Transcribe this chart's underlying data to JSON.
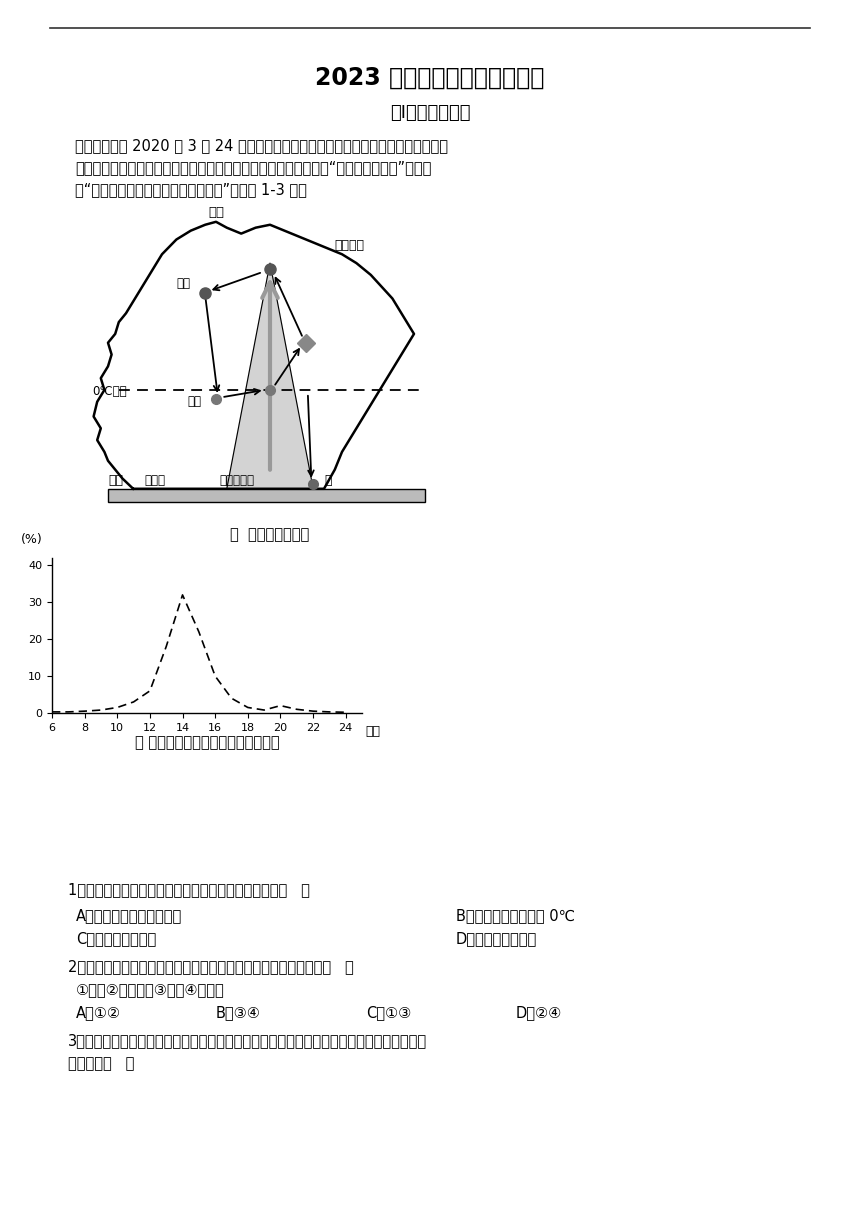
{
  "title": "2023 年地理高考模拟题（一）",
  "subtitle": "第Ⅰ卷（选择题）",
  "intro_line1": "贵州省气象局 2020 年 3 月 24 日发布，全省大部分地区遭遇多雷电天气，省大部分地",
  "intro_line2": "区雷雨中伴有大风、冰雹、短时强降水等强对流天气。下面甲图为“冰雹形成原理图”，乙图",
  "intro_line3": "为“一天中不同时段冰雹发生的百分比”，读图 1-3 题。",
  "diagram_caption": "甲  冰雹形成原理图",
  "chart_caption": "乙 一天中不同时段冰雹发生的百分比",
  "chart_xlabel": "时间",
  "chart_ylabel": "(%)",
  "chart_yticks": [
    0,
    10,
    20,
    30,
    40
  ],
  "chart_xticks": [
    6,
    8,
    10,
    12,
    14,
    16,
    18,
    20,
    22,
    24
  ],
  "chart_x": [
    6,
    7,
    8,
    9,
    10,
    11,
    12,
    13,
    14,
    15,
    16,
    17,
    18,
    19,
    20,
    21,
    22,
    23,
    24
  ],
  "chart_y": [
    0.3,
    0.3,
    0.5,
    0.8,
    1.5,
    3,
    6,
    18,
    32,
    22,
    10,
    4,
    1.5,
    0.8,
    2,
    1,
    0.5,
    0.3,
    0.2
  ],
  "q1": "1．据图分析下列关于冰雹形成的基本条件不正确的是（   ）",
  "q1_A": "A．云层中要有充足的水汽",
  "q1_B": "B．大气的温度要低于 0℃",
  "q1_C": "C．强烈的上升气流",
  "q1_D": "D．稳定的大气环境",
  "q2": "2．据图并结合所学知识推断可能造成冰雹灰害的天气系统可能有（   ）",
  "q2_sub": "①冷锋②准静止锋③气旋④反气旋",
  "q2_A": "A．①②",
  "q2_B": "B．③④",
  "q2_C": "C．①③",
  "q2_D": "D．②④",
  "q3_line1": "3．相关部门在分析强降雨、冰雹灰害的影响范围，确定救灰物资调配时用到的地理信息技术",
  "q3_line2": "还可用来（   ）",
  "label_yunding": "云顶",
  "label_leibao": "雷暴雨云",
  "label_0c": "0℃高度",
  "label_dimian": "地面",
  "label_xiaoshui": "小水滴",
  "label_qiuliu": "强上升气流",
  "label_bao": "雹",
  "label_bingli": "冰粒",
  "label_binjing": "冰晶",
  "bg_color": "#ffffff",
  "text_color": "#000000"
}
